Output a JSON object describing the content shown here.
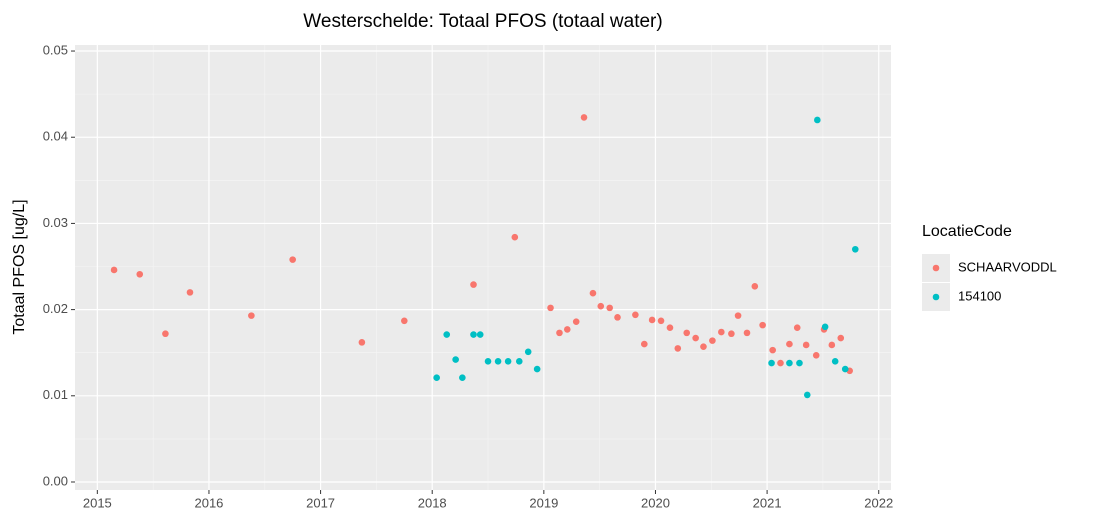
{
  "chart_data": {
    "type": "scatter",
    "title": "Westerschelde: Totaal PFOS (totaal water)",
    "y_label": "Totaal PFOS [ug/L]",
    "legend_title": "LocatieCode",
    "legend_position": "right",
    "grid": true,
    "xlim": [
      2014.8,
      2022.11
    ],
    "xticks": [
      2015,
      2016,
      2017,
      2018,
      2019,
      2020,
      2021,
      2022
    ],
    "ylim": [
      -0.00093,
      0.0507
    ],
    "yticks": [
      {
        "value": 0,
        "label": "0.00"
      },
      0.01,
      0.02,
      0.03,
      0.04,
      0.05
    ],
    "series": [
      {
        "name": "SCHAARVODDL",
        "color": "#f8766d",
        "x": [
          2015.15,
          2015.38,
          2015.61,
          2015.83,
          2016.38,
          2016.75,
          2017.37,
          2017.75,
          2018.37,
          2018.74,
          2019.06,
          2019.14,
          2019.21,
          2019.29,
          2019.36,
          2019.44,
          2019.51,
          2019.59,
          2019.66,
          2019.82,
          2019.9,
          2019.97,
          2020.05,
          2020.13,
          2020.2,
          2020.28,
          2020.36,
          2020.43,
          2020.51,
          2020.59,
          2020.68,
          2020.74,
          2020.82,
          2020.89,
          2020.96,
          2021.05,
          2021.12,
          2021.2,
          2021.27,
          2021.35,
          2021.44,
          2021.51,
          2021.58,
          2021.66,
          2021.74
        ],
        "values": [
          0.0246,
          0.0241,
          0.0172,
          0.022,
          0.0193,
          0.0258,
          0.0162,
          0.0187,
          0.0229,
          0.0284,
          0.0202,
          0.0173,
          0.0177,
          0.0186,
          0.0423,
          0.0219,
          0.0204,
          0.0202,
          0.0191,
          0.0194,
          0.016,
          0.0188,
          0.0187,
          0.0179,
          0.0155,
          0.0173,
          0.0167,
          0.0157,
          0.0164,
          0.0174,
          0.0172,
          0.0193,
          0.0173,
          0.0227,
          0.0182,
          0.0153,
          0.0138,
          0.016,
          0.0179,
          0.0159,
          0.0147,
          0.0177,
          0.0159,
          0.0167,
          0.0129
        ]
      },
      {
        "name": "154100",
        "color": "#00bfc4",
        "x": [
          2018.04,
          2018.13,
          2018.21,
          2018.27,
          2018.37,
          2018.43,
          2018.5,
          2018.59,
          2018.68,
          2018.78,
          2018.86,
          2018.94,
          2021.04,
          2021.2,
          2021.29,
          2021.36,
          2021.45,
          2021.52,
          2021.61,
          2021.7,
          2021.79
        ],
        "values": [
          0.0121,
          0.0171,
          0.0142,
          0.0121,
          0.0171,
          0.0171,
          0.014,
          0.014,
          0.014,
          0.014,
          0.0151,
          0.0131,
          0.0138,
          0.0138,
          0.0138,
          0.0101,
          0.042,
          0.018,
          0.014,
          0.0131,
          0.027
        ]
      }
    ]
  }
}
